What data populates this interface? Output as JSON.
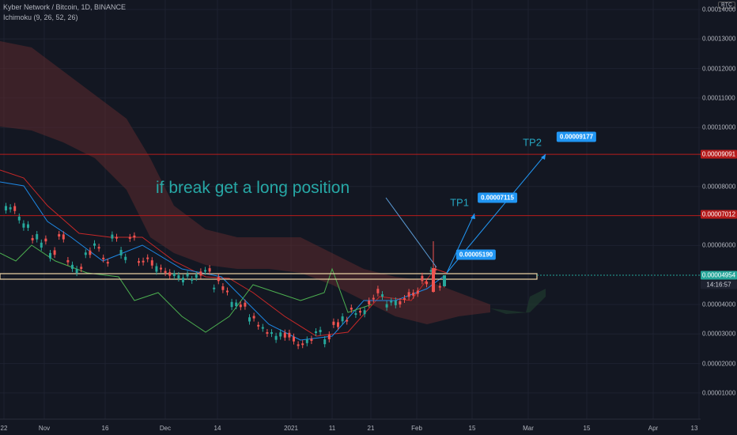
{
  "header": {
    "title": "Kyber Network / Bitcoin, 1D, BINANCE",
    "indicator": "Ichimoku (9, 26, 52, 26)"
  },
  "currency_badge": "BTC",
  "annotation_text": "if break get a long position",
  "targets": [
    {
      "label": "TP1",
      "price_text": "0.00007115",
      "value": 7.115e-05
    },
    {
      "label": "TP2",
      "price_text": "0.00009177",
      "value": 9.177e-05
    }
  ],
  "entry_badge": {
    "price_text": "0.00005190",
    "value": 5.19e-05
  },
  "price_axis": {
    "ticks": [
      "0.00014000",
      "0.00013000",
      "0.00012000",
      "0.00011000",
      "0.00010000",
      "0.00008000",
      "0.00006000",
      "0.00004000",
      "0.00003000",
      "0.00002000",
      "0.00001000"
    ],
    "tick_values": [
      0.00014,
      0.00013,
      0.00012,
      0.00011,
      0.0001,
      8e-05,
      6e-05,
      4e-05,
      3e-05,
      2e-05,
      1e-05
    ],
    "current_price": "0.00004954",
    "countdown": "14:16:57",
    "level_upper": "0.00009091",
    "level_lower": "0.00007012"
  },
  "time_axis": {
    "labels": [
      "22",
      "Nov",
      "16",
      "Dec",
      "14",
      "2021",
      "11",
      "21",
      "Feb",
      "15",
      "Mar",
      "15",
      "Apr",
      "13"
    ]
  },
  "colors": {
    "up": "#26a69a",
    "down": "#ef5350",
    "cloud": "#5d2a2e",
    "resistance": "#b71c1c",
    "support_box": "#f0d6a8",
    "accent": "#2196f3"
  },
  "chart_data": {
    "type": "candlestick",
    "title": "Kyber Network / Bitcoin, 1D, BINANCE",
    "x": [
      "2020-10-22",
      "2020-11-01",
      "2020-11-16",
      "2020-12-01",
      "2020-12-14",
      "2021-01-01",
      "2021-01-11",
      "2021-01-21",
      "2021-02-01",
      "2021-02-07"
    ],
    "close": [
      7.5e-05,
      5.2e-05,
      5.8e-05,
      5e-05,
      4.9e-05,
      2.6e-05,
      2.9e-05,
      4e-05,
      3.8e-05,
      5.1e-05
    ],
    "horizontal_levels": [
      9.091e-05,
      7.012e-05
    ],
    "support_zone": [
      4.85e-05,
      5.05e-05
    ],
    "ylim": [
      2.8e-06,
      0.000145
    ],
    "grid": true,
    "legend": "none"
  }
}
